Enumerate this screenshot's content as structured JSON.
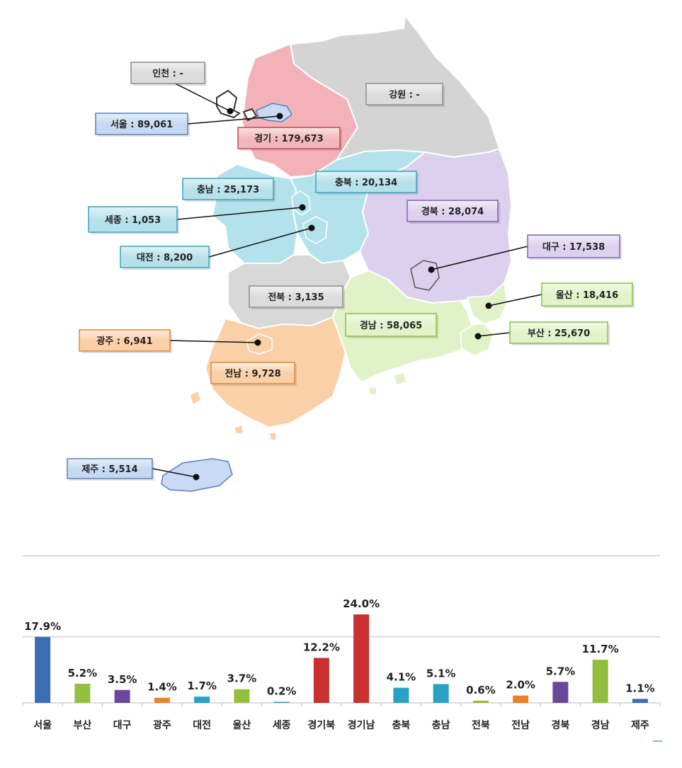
{
  "colors": {
    "seoul": "#c9dbf4",
    "incheon": "#ffffff",
    "gyeonggi": "#f3b2b8",
    "gangwon": "#d4d4d4",
    "chungnam": "#b4e2ec",
    "chungbuk": "#b4e2ec",
    "gyeongbuk": "#ddd0ee",
    "jeonbuk": "#d8d8d8",
    "jeonnam": "#fad0a8",
    "gyeongnam": "#e2f2c8",
    "jeju": "#c9dbf4"
  },
  "map_labels": [
    {
      "key": "incheon",
      "text": "인천 : -"
    },
    {
      "key": "seoul",
      "text": "서울 : 89,061"
    },
    {
      "key": "gyeonggi",
      "text": "경기 : 179,673"
    },
    {
      "key": "gangwon",
      "text": "강원 : -"
    },
    {
      "key": "chungnam",
      "text": "충남 : 25,173"
    },
    {
      "key": "chungbuk",
      "text": "충북 : 20,134"
    },
    {
      "key": "sejong",
      "text": "세종 : 1,053"
    },
    {
      "key": "gyeongbuk",
      "text": "경북 : 28,074"
    },
    {
      "key": "daejeon",
      "text": "대전 : 8,200"
    },
    {
      "key": "daegu",
      "text": "대구 : 17,538"
    },
    {
      "key": "jeonbuk",
      "text": "전북 : 3,135"
    },
    {
      "key": "ulsan",
      "text": "울산 : 18,416"
    },
    {
      "key": "gyeongnam",
      "text": "경남 : 58,065"
    },
    {
      "key": "busan",
      "text": "부산 : 25,670"
    },
    {
      "key": "gwangju",
      "text": "광주 : 6,941"
    },
    {
      "key": "jeonnam",
      "text": "전남 : 9,728"
    },
    {
      "key": "jeju",
      "text": "제주 : 5,514"
    }
  ],
  "chart_data": {
    "type": "bar",
    "categories": [
      "서울",
      "부산",
      "대구",
      "광주",
      "대전",
      "울산",
      "세종",
      "경기북",
      "경기남",
      "충북",
      "충남",
      "전북",
      "전남",
      "경북",
      "경남",
      "제주"
    ],
    "values": [
      17.9,
      5.2,
      3.5,
      1.4,
      1.7,
      3.7,
      0.2,
      12.2,
      24.0,
      4.1,
      5.1,
      0.6,
      2.0,
      5.7,
      11.7,
      1.1
    ],
    "value_labels": [
      "17.9%",
      "5.2%",
      "3.5%",
      "1.4%",
      "1.7%",
      "3.7%",
      "0.2%",
      "12.2%",
      "24.0%",
      "4.1%",
      "5.1%",
      "0.6%",
      "2.0%",
      "5.7%",
      "11.7%",
      "1.1%"
    ],
    "bar_colors": [
      "#3a6fb5",
      "#93bf3e",
      "#6a4a98",
      "#e8832a",
      "#29a0c4",
      "#93bf3e",
      "#29a0c4",
      "#c8312e",
      "#c8312e",
      "#29a0c4",
      "#29a0c4",
      "#93bf3e",
      "#e8832a",
      "#6a4a98",
      "#93bf3e",
      "#3a6fb5"
    ],
    "ylim": [
      0,
      24
    ],
    "grid": true,
    "title": "",
    "xlabel": "",
    "ylabel": ""
  }
}
